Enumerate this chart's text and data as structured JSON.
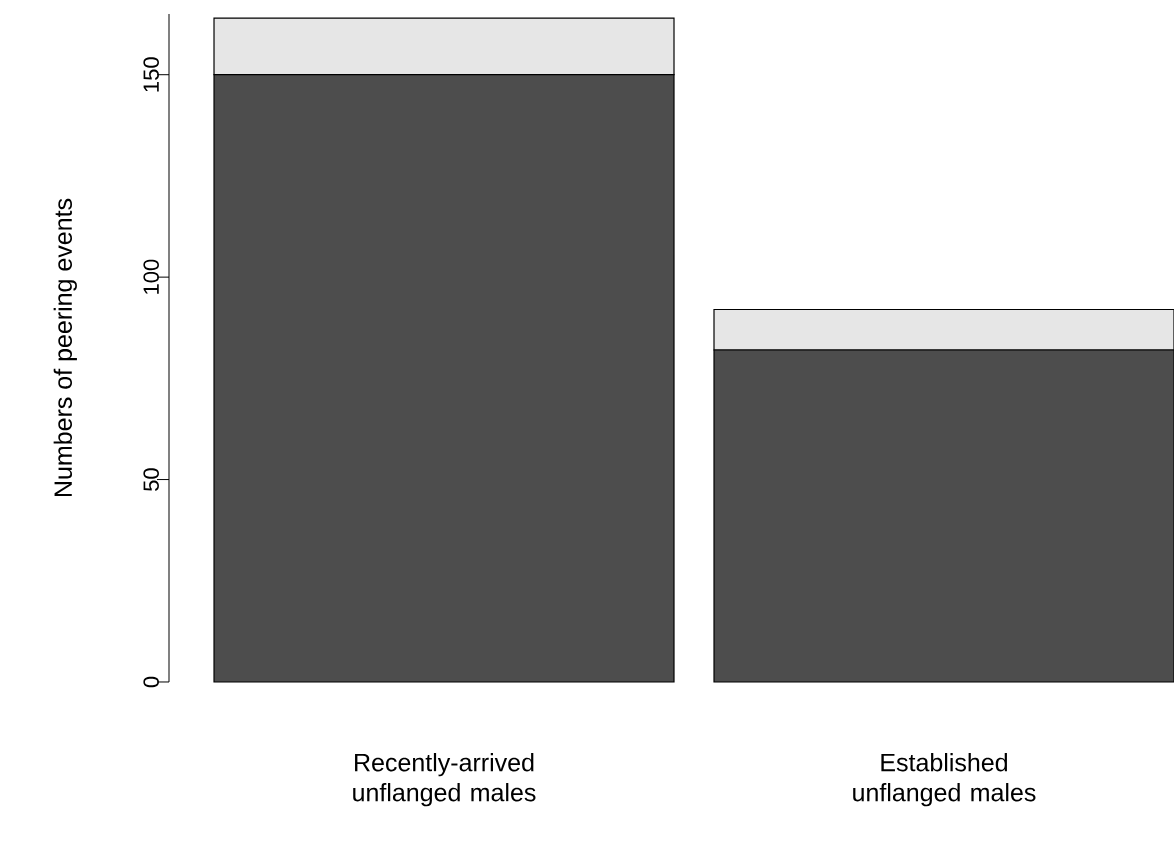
{
  "chart_data": {
    "type": "bar",
    "stacked": true,
    "ylabel": "Numbers of peering events",
    "categories": [
      "Recently-arrived unflanged males",
      "Established unflanged males"
    ],
    "series": [
      {
        "color": "#4d4d4d",
        "values": [
          150,
          82
        ]
      },
      {
        "color": "#e6e6e6",
        "values": [
          14,
          10
        ]
      }
    ],
    "ylim": [
      0,
      165
    ],
    "yticks": [
      0,
      50,
      100,
      150
    ]
  }
}
